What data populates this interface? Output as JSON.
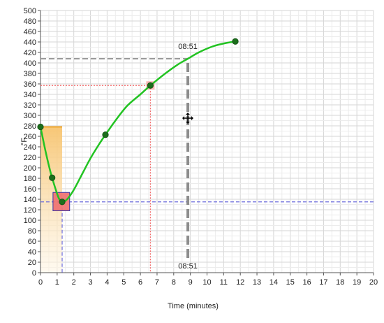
{
  "chart_data": {
    "type": "line",
    "title": "",
    "xlabel": "Time (minutes)",
    "ylabel": "°F",
    "xlim": [
      0,
      20
    ],
    "ylim": [
      0,
      500
    ],
    "x_tick_step": 1,
    "y_tick_step": 20,
    "x_ticks": [
      "0",
      "1",
      "2",
      "3",
      "4",
      "5",
      "6",
      "7",
      "8",
      "9",
      "10",
      "11",
      "12",
      "13",
      "14",
      "15",
      "16",
      "17",
      "18",
      "19",
      "20"
    ],
    "grid": true,
    "legend": "none",
    "series": [
      {
        "name": "",
        "color": "#22c322",
        "points": [
          {
            "x": 0.0,
            "y": 278
          },
          {
            "x": 0.7,
            "y": 181
          },
          {
            "x": 1.3,
            "y": 135
          },
          {
            "x": 3.9,
            "y": 263
          },
          {
            "x": 6.6,
            "y": 357
          },
          {
            "x": 11.7,
            "y": 441
          }
        ],
        "curve": [
          [
            0.0,
            278
          ],
          [
            0.3,
            232
          ],
          [
            0.6,
            192
          ],
          [
            0.9,
            160
          ],
          [
            1.1,
            142
          ],
          [
            1.3,
            135
          ],
          [
            1.6,
            140
          ],
          [
            2.0,
            158
          ],
          [
            2.5,
            188
          ],
          [
            3.0,
            218
          ],
          [
            3.5,
            244
          ],
          [
            3.9,
            263
          ],
          [
            4.5,
            290
          ],
          [
            5.2,
            318
          ],
          [
            6.0,
            340
          ],
          [
            6.6,
            357
          ],
          [
            7.5,
            380
          ],
          [
            8.3,
            398
          ],
          [
            8.85,
            408
          ],
          [
            9.5,
            420
          ],
          [
            10.3,
            431
          ],
          [
            11.0,
            437
          ],
          [
            11.7,
            441
          ]
        ]
      }
    ],
    "annotations": {
      "time_label_top": "08:51",
      "time_label_bottom": "08:51",
      "cursor_x": 8.85,
      "cursor_y": 408,
      "crosshair_blue_x": 1.3,
      "crosshair_blue_y": 135,
      "crosshair_red_x": 6.6,
      "crosshair_red_y": 357,
      "shade_x_end": 1.3,
      "shade_y_top": 278,
      "selection_box": {
        "x0": 0.75,
        "x1": 1.75,
        "y0": 118,
        "y1": 153
      }
    }
  }
}
